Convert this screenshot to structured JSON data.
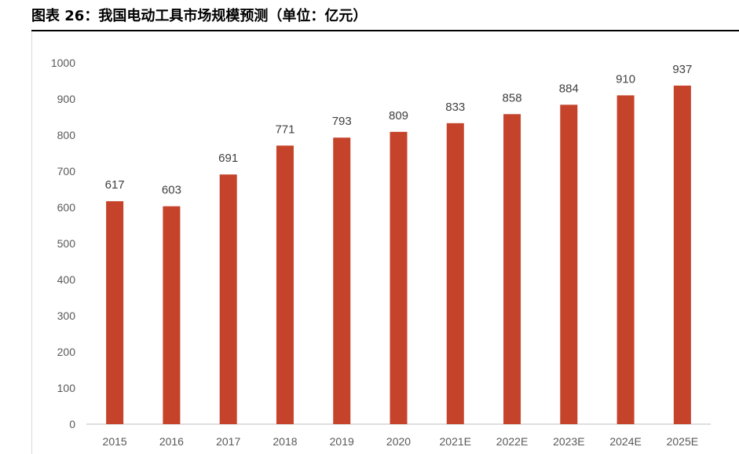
{
  "figure": {
    "title": "图表 26：我国电动工具市场规模预测（单位：亿元）"
  },
  "chart_data": {
    "type": "bar",
    "title": "图表 26：我国电动工具市场规模预测（单位：亿元）",
    "categories": [
      "2015",
      "2016",
      "2017",
      "2018",
      "2019",
      "2020",
      "2021E",
      "2022E",
      "2023E",
      "2024E",
      "2025E"
    ],
    "values": [
      617,
      603,
      691,
      771,
      793,
      809,
      833,
      858,
      884,
      910,
      937
    ],
    "data_labels": [
      "617",
      "603",
      "691",
      "771",
      "793",
      "809",
      "833",
      "858",
      "884",
      "910",
      "937"
    ],
    "yticks": [
      "0",
      "100",
      "200",
      "300",
      "400",
      "500",
      "600",
      "700",
      "800",
      "900",
      "1000"
    ],
    "ylim": [
      0,
      1000
    ],
    "xlabel": "",
    "ylabel": "",
    "grid": false,
    "legend": "none",
    "bar_color": "#C5432A",
    "axis_color": "#bfbfbf"
  }
}
